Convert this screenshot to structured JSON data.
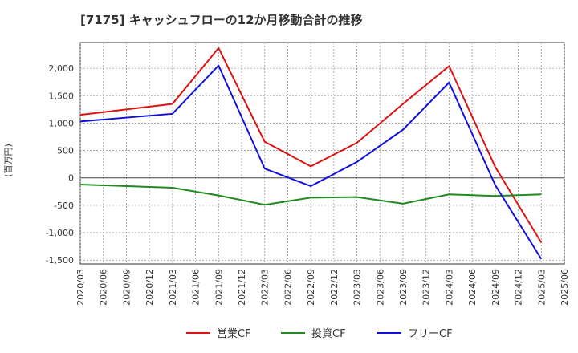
{
  "title": "[7175]  キャッシュフローの12か月移動合計の推移",
  "chart_data": {
    "type": "line",
    "title": "[7175]  キャッシュフローの12か月移動合計の推移",
    "xlabel": "",
    "ylabel": "(百万円)",
    "ylim": [
      -1570,
      2470
    ],
    "yticks": [
      2000,
      1500,
      1000,
      500,
      0,
      -500,
      -1000,
      -1500
    ],
    "ytick_labels": [
      "2,000",
      "1,500",
      "1,000",
      "500",
      "0",
      "-500",
      "-1,000",
      "-1,500"
    ],
    "x_ticks": [
      "2020/03",
      "2020/06",
      "2020/09",
      "2020/12",
      "2021/03",
      "2021/06",
      "2021/09",
      "2021/12",
      "2022/03",
      "2022/06",
      "2022/09",
      "2022/12",
      "2023/03",
      "2023/06",
      "2023/09",
      "2023/12",
      "2024/03",
      "2024/06",
      "2024/09",
      "2024/12",
      "2025/03",
      "2025/06"
    ],
    "x": [
      "2020/03",
      "2021/03",
      "2021/09",
      "2022/03",
      "2022/09",
      "2023/03",
      "2023/09",
      "2024/03",
      "2024/09",
      "2025/03"
    ],
    "legend_position": "bottom",
    "series": [
      {
        "name": "営業CF",
        "color": "#dd1111",
        "values": [
          1150,
          1350,
          2370,
          660,
          210,
          640,
          1350,
          2040,
          200,
          -1180
        ]
      },
      {
        "name": "投資CF",
        "color": "#228822",
        "values": [
          -120,
          -180,
          -320,
          -490,
          -360,
          -350,
          -470,
          -300,
          -330,
          -300
        ]
      },
      {
        "name": "フリーCF",
        "color": "#1111dd",
        "values": [
          1030,
          1170,
          2050,
          170,
          -150,
          290,
          880,
          1740,
          -130,
          -1480
        ]
      }
    ]
  }
}
